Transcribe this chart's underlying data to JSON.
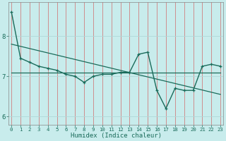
{
  "xlabel": "Humidex (Indice chaleur)",
  "background_color": "#c8ecec",
  "grid_color": "#b0d8d8",
  "line_color": "#1a6b5a",
  "x_values": [
    0,
    1,
    2,
    3,
    4,
    5,
    6,
    7,
    8,
    9,
    10,
    11,
    12,
    13,
    14,
    15,
    16,
    17,
    18,
    19,
    20,
    21,
    22,
    23
  ],
  "y_values": [
    8.6,
    7.45,
    7.35,
    7.25,
    7.2,
    7.15,
    7.05,
    7.0,
    6.85,
    7.0,
    7.05,
    7.05,
    7.1,
    7.1,
    7.55,
    7.6,
    6.65,
    6.2,
    6.7,
    6.65,
    6.65,
    7.25,
    7.3,
    7.25
  ],
  "trend1_x": [
    0,
    23
  ],
  "trend1_y": [
    7.8,
    6.55
  ],
  "trend2_x": [
    0,
    23
  ],
  "trend2_y": [
    7.1,
    7.1
  ],
  "ylim": [
    5.8,
    8.85
  ],
  "xlim": [
    -0.3,
    23.3
  ],
  "yticks": [
    6,
    7,
    8
  ],
  "xticks": [
    0,
    1,
    2,
    3,
    4,
    5,
    6,
    7,
    8,
    9,
    10,
    11,
    12,
    13,
    14,
    15,
    16,
    17,
    18,
    19,
    20,
    21,
    22,
    23
  ],
  "xlabel_fontsize": 6.5,
  "ytick_fontsize": 6.5,
  "xtick_fontsize": 5.2
}
